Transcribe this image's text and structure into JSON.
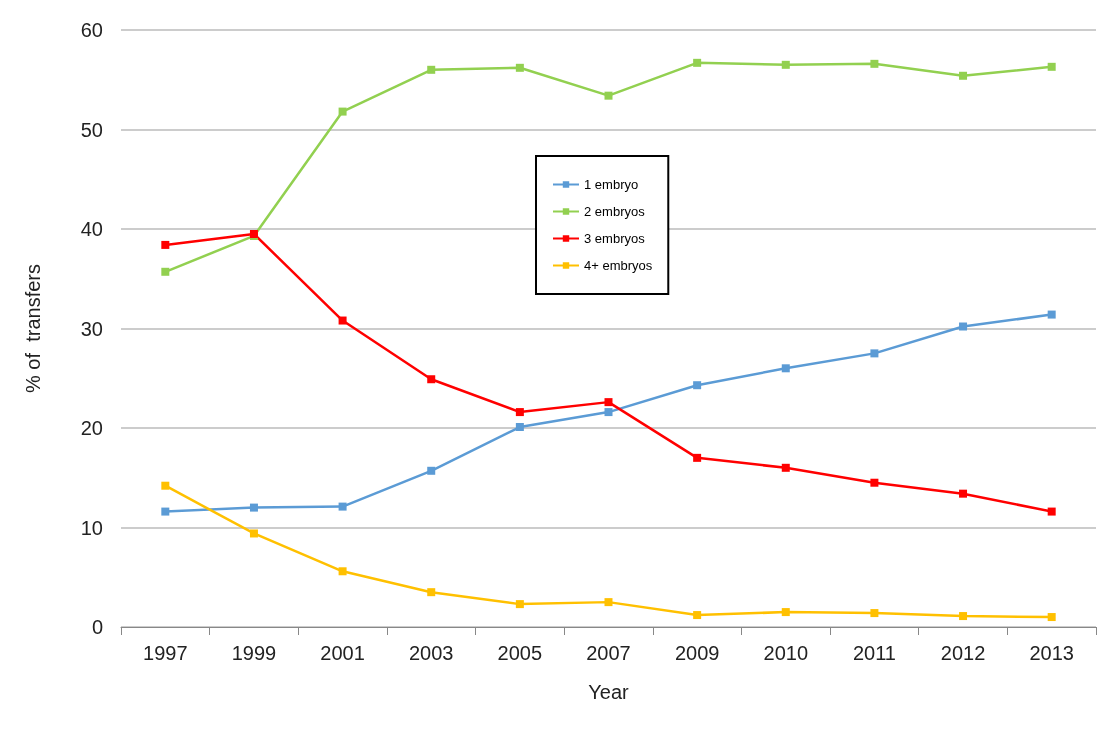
{
  "chart_data": {
    "type": "line",
    "xlabel": "Year",
    "ylabel": "% of  transfers",
    "categories": [
      "1997",
      "1999",
      "2001",
      "2003",
      "2005",
      "2007",
      "2009",
      "2010",
      "2011",
      "2012",
      "2013"
    ],
    "series": [
      {
        "name": "1 embryo",
        "color": "#5b9bd5",
        "values": [
          11.6,
          12.0,
          12.1,
          15.7,
          20.1,
          21.6,
          24.3,
          26.0,
          27.5,
          30.2,
          31.4
        ]
      },
      {
        "name": "2 embryos",
        "color": "#92d050",
        "values": [
          35.7,
          39.3,
          51.8,
          56.0,
          56.2,
          53.4,
          56.7,
          56.5,
          56.6,
          55.4,
          56.3
        ]
      },
      {
        "name": "3 embryos",
        "color": "#ff0000",
        "values": [
          38.4,
          39.5,
          30.8,
          24.9,
          21.6,
          22.6,
          17.0,
          16.0,
          14.5,
          13.4,
          11.6
        ]
      },
      {
        "name": "4+ embryos",
        "color": "#ffc000",
        "values": [
          14.2,
          9.4,
          5.6,
          3.5,
          2.3,
          2.5,
          1.2,
          1.5,
          1.4,
          1.1,
          1.0
        ]
      }
    ],
    "ylim": [
      0,
      60
    ],
    "yticks": [
      0,
      10,
      20,
      30,
      40,
      50,
      60
    ],
    "grid": "y",
    "legend": "top right",
    "marker": "square",
    "line_style": "solid"
  }
}
